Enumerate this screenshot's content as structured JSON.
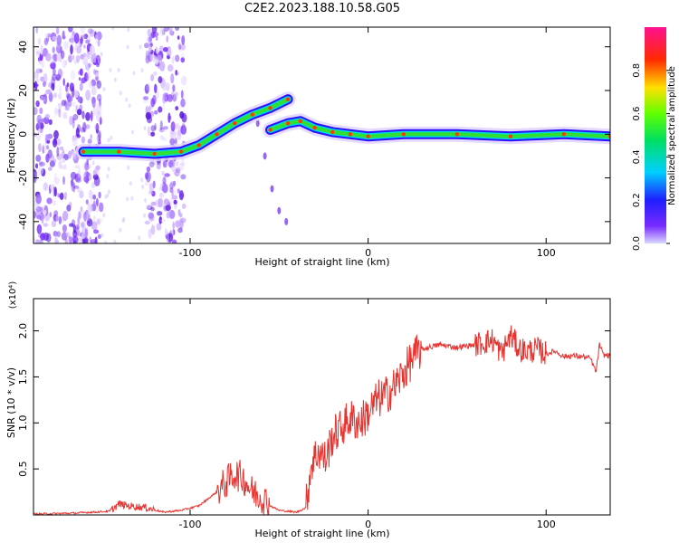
{
  "title": "C2E2.2023.188.10.58.G05",
  "colors": {
    "snr_line": "#e8322e",
    "track_core": "#00c8a0",
    "scatter": "#7a2cff"
  },
  "chart_data": [
    {
      "type": "heatmap",
      "xlabel": "Height of straight line (km)",
      "ylabel": "Frequency (Hz)",
      "xlim": [
        -188,
        136
      ],
      "ylim": [
        -50,
        49
      ],
      "x_ticks": [
        -100,
        0,
        100
      ],
      "y_ticks": [
        -40,
        -20,
        0,
        20,
        40
      ],
      "colorbar": {
        "label": "Normalized spectral amplitude",
        "range": [
          0,
          1
        ],
        "ticks": [
          "0.0",
          "0.2",
          "0.4",
          "0.6",
          "0.8"
        ],
        "colormap": "rainbow (violet-blue-cyan-green-yellow-red-magenta)"
      },
      "main_track": [
        {
          "x": -160,
          "y": -8
        },
        {
          "x": -140,
          "y": -8
        },
        {
          "x": -120,
          "y": -9
        },
        {
          "x": -105,
          "y": -8
        },
        {
          "x": -95,
          "y": -5
        },
        {
          "x": -85,
          "y": 0
        },
        {
          "x": -75,
          "y": 5
        },
        {
          "x": -65,
          "y": 9
        },
        {
          "x": -55,
          "y": 12
        },
        {
          "x": -45,
          "y": 16
        }
      ],
      "secondary_track": [
        {
          "x": -55,
          "y": 2
        },
        {
          "x": -45,
          "y": 5
        },
        {
          "x": -38,
          "y": 6
        },
        {
          "x": -30,
          "y": 3
        },
        {
          "x": -20,
          "y": 1
        },
        {
          "x": -10,
          "y": 0
        },
        {
          "x": 0,
          "y": -1
        },
        {
          "x": 20,
          "y": 0
        },
        {
          "x": 50,
          "y": 0
        },
        {
          "x": 80,
          "y": -1
        },
        {
          "x": 110,
          "y": 0
        },
        {
          "x": 136,
          "y": -1
        }
      ],
      "faint_branch": [
        {
          "x": -62,
          "y": 5
        },
        {
          "x": -58,
          "y": -10
        },
        {
          "x": -54,
          "y": -25
        },
        {
          "x": -50,
          "y": -35
        },
        {
          "x": -46,
          "y": -40
        }
      ],
      "noise_bands": [
        {
          "from": -188,
          "to": -150
        },
        {
          "from": -125,
          "to": -103
        }
      ]
    },
    {
      "type": "line",
      "xlabel": "Height of straight line (km)",
      "ylabel": "SNR (10 * v/v)",
      "y_multiplier": "(x10⁴)",
      "xlim": [
        -188,
        136
      ],
      "ylim": [
        0,
        2.35
      ],
      "x_ticks": [
        -100,
        0,
        100
      ],
      "y_ticks": [
        0.5,
        1.0,
        1.5,
        2.0
      ],
      "series": [
        {
          "x": [
            -188,
            -165,
            -145,
            -140,
            -135,
            -125,
            -115,
            -105,
            -95,
            -85,
            -80,
            -75,
            -70,
            -65,
            -60,
            -55,
            -50,
            -45,
            -40,
            -35,
            -32,
            -28,
            -24,
            -20,
            -15,
            -10,
            -5,
            0,
            5,
            10,
            15,
            20,
            25,
            30,
            40,
            50,
            60,
            70,
            75,
            80,
            85,
            90,
            95,
            100,
            105,
            110,
            115,
            120,
            125,
            128,
            130,
            132,
            136
          ],
          "y": [
            0.01,
            0.02,
            0.04,
            0.12,
            0.1,
            0.08,
            0.03,
            0.05,
            0.1,
            0.25,
            0.35,
            0.45,
            0.4,
            0.25,
            0.2,
            0.1,
            0.05,
            0.04,
            0.03,
            0.08,
            0.55,
            0.7,
            0.6,
            0.85,
            0.95,
            1.05,
            1.0,
            1.1,
            1.25,
            1.3,
            1.4,
            1.55,
            1.7,
            1.8,
            1.85,
            1.82,
            1.85,
            1.9,
            1.75,
            1.95,
            1.8,
            1.78,
            1.8,
            1.75,
            1.78,
            1.72,
            1.73,
            1.72,
            1.7,
            1.55,
            1.85,
            1.74,
            1.73
          ]
        }
      ]
    }
  ]
}
